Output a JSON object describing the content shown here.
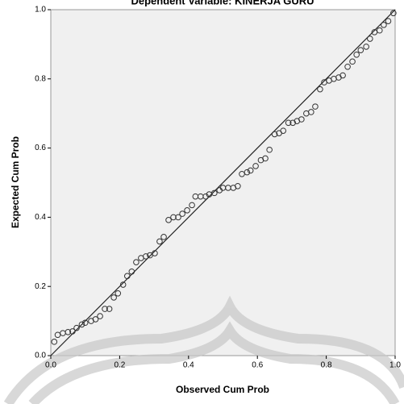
{
  "chart_data": {
    "type": "scatter",
    "title": "Dependent Variable: KINERJA GURU",
    "x_label": "Observed Cum Prob",
    "y_label": "Expected Cum Prob",
    "xlim": [
      0,
      1
    ],
    "ylim": [
      0,
      1
    ],
    "xticks": [
      {
        "value": 0,
        "label": "0.0"
      },
      0.2,
      0.4,
      0.6,
      0.8,
      {
        "value": 1,
        "label": "1.0"
      }
    ],
    "yticks": [
      {
        "value": 0,
        "label": "0.0"
      },
      0.2,
      0.4,
      0.6,
      0.8,
      {
        "value": 1,
        "label": "1.0"
      }
    ],
    "color": "#333333",
    "x": [
      0.01,
      0.02,
      0.035,
      0.05,
      0.063,
      0.075,
      0.09,
      0.1,
      0.117,
      0.13,
      0.143,
      0.157,
      0.17,
      0.183,
      0.195,
      0.21,
      0.222,
      0.235,
      0.248,
      0.262,
      0.276,
      0.288,
      0.302,
      0.316,
      0.328,
      0.342,
      0.356,
      0.37,
      0.382,
      0.396,
      0.41,
      0.42,
      0.435,
      0.45,
      0.46,
      0.475,
      0.49,
      0.5,
      0.515,
      0.53,
      0.543,
      0.555,
      0.57,
      0.58,
      0.595,
      0.61,
      0.623,
      0.635,
      0.65,
      0.663,
      0.675,
      0.69,
      0.703,
      0.715,
      0.728,
      0.742,
      0.756,
      0.768,
      0.782,
      0.794,
      0.808,
      0.822,
      0.836,
      0.848,
      0.862,
      0.876,
      0.888,
      0.9,
      0.916,
      0.927,
      0.94,
      0.955,
      0.967,
      0.98,
      0.995
    ],
    "values": [
      0.04,
      0.06,
      0.065,
      0.068,
      0.07,
      0.08,
      0.09,
      0.095,
      0.1,
      0.105,
      0.114,
      0.135,
      0.135,
      0.168,
      0.18,
      0.205,
      0.23,
      0.243,
      0.27,
      0.282,
      0.287,
      0.29,
      0.296,
      0.33,
      0.343,
      0.392,
      0.4,
      0.4,
      0.41,
      0.42,
      0.435,
      0.46,
      0.46,
      0.46,
      0.466,
      0.47,
      0.478,
      0.485,
      0.485,
      0.485,
      0.49,
      0.525,
      0.53,
      0.535,
      0.548,
      0.565,
      0.57,
      0.595,
      0.64,
      0.643,
      0.65,
      0.673,
      0.673,
      0.678,
      0.683,
      0.7,
      0.704,
      0.72,
      0.77,
      0.79,
      0.795,
      0.8,
      0.804,
      0.81,
      0.835,
      0.85,
      0.87,
      0.883,
      0.893,
      0.916,
      0.935,
      0.94,
      0.956,
      0.967,
      0.99
    ]
  }
}
